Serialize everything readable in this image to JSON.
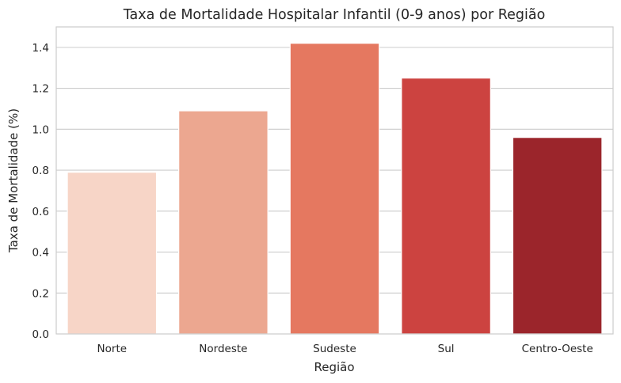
{
  "chart_data": {
    "type": "bar",
    "title": "Taxa de Mortalidade Hospitalar Infantil (0-9 anos) por Região",
    "xlabel": "Região",
    "ylabel": "Taxa de Mortalidade (%)",
    "categories": [
      "Norte",
      "Nordeste",
      "Sudeste",
      "Sul",
      "Centro-Oeste"
    ],
    "values": [
      0.79,
      1.09,
      1.42,
      1.25,
      0.96
    ],
    "colors": [
      "#f7d5c7",
      "#eca790",
      "#e57860",
      "#cc4340",
      "#9b252b"
    ],
    "ylim": [
      0,
      1.5
    ],
    "yticks": [
      0.0,
      0.2,
      0.4,
      0.6,
      0.8,
      1.0,
      1.2,
      1.4
    ],
    "ytick_labels": [
      "0.0",
      "0.2",
      "0.4",
      "0.6",
      "0.8",
      "1.0",
      "1.2",
      "1.4"
    ],
    "grid": "y-major",
    "legend": "none"
  }
}
